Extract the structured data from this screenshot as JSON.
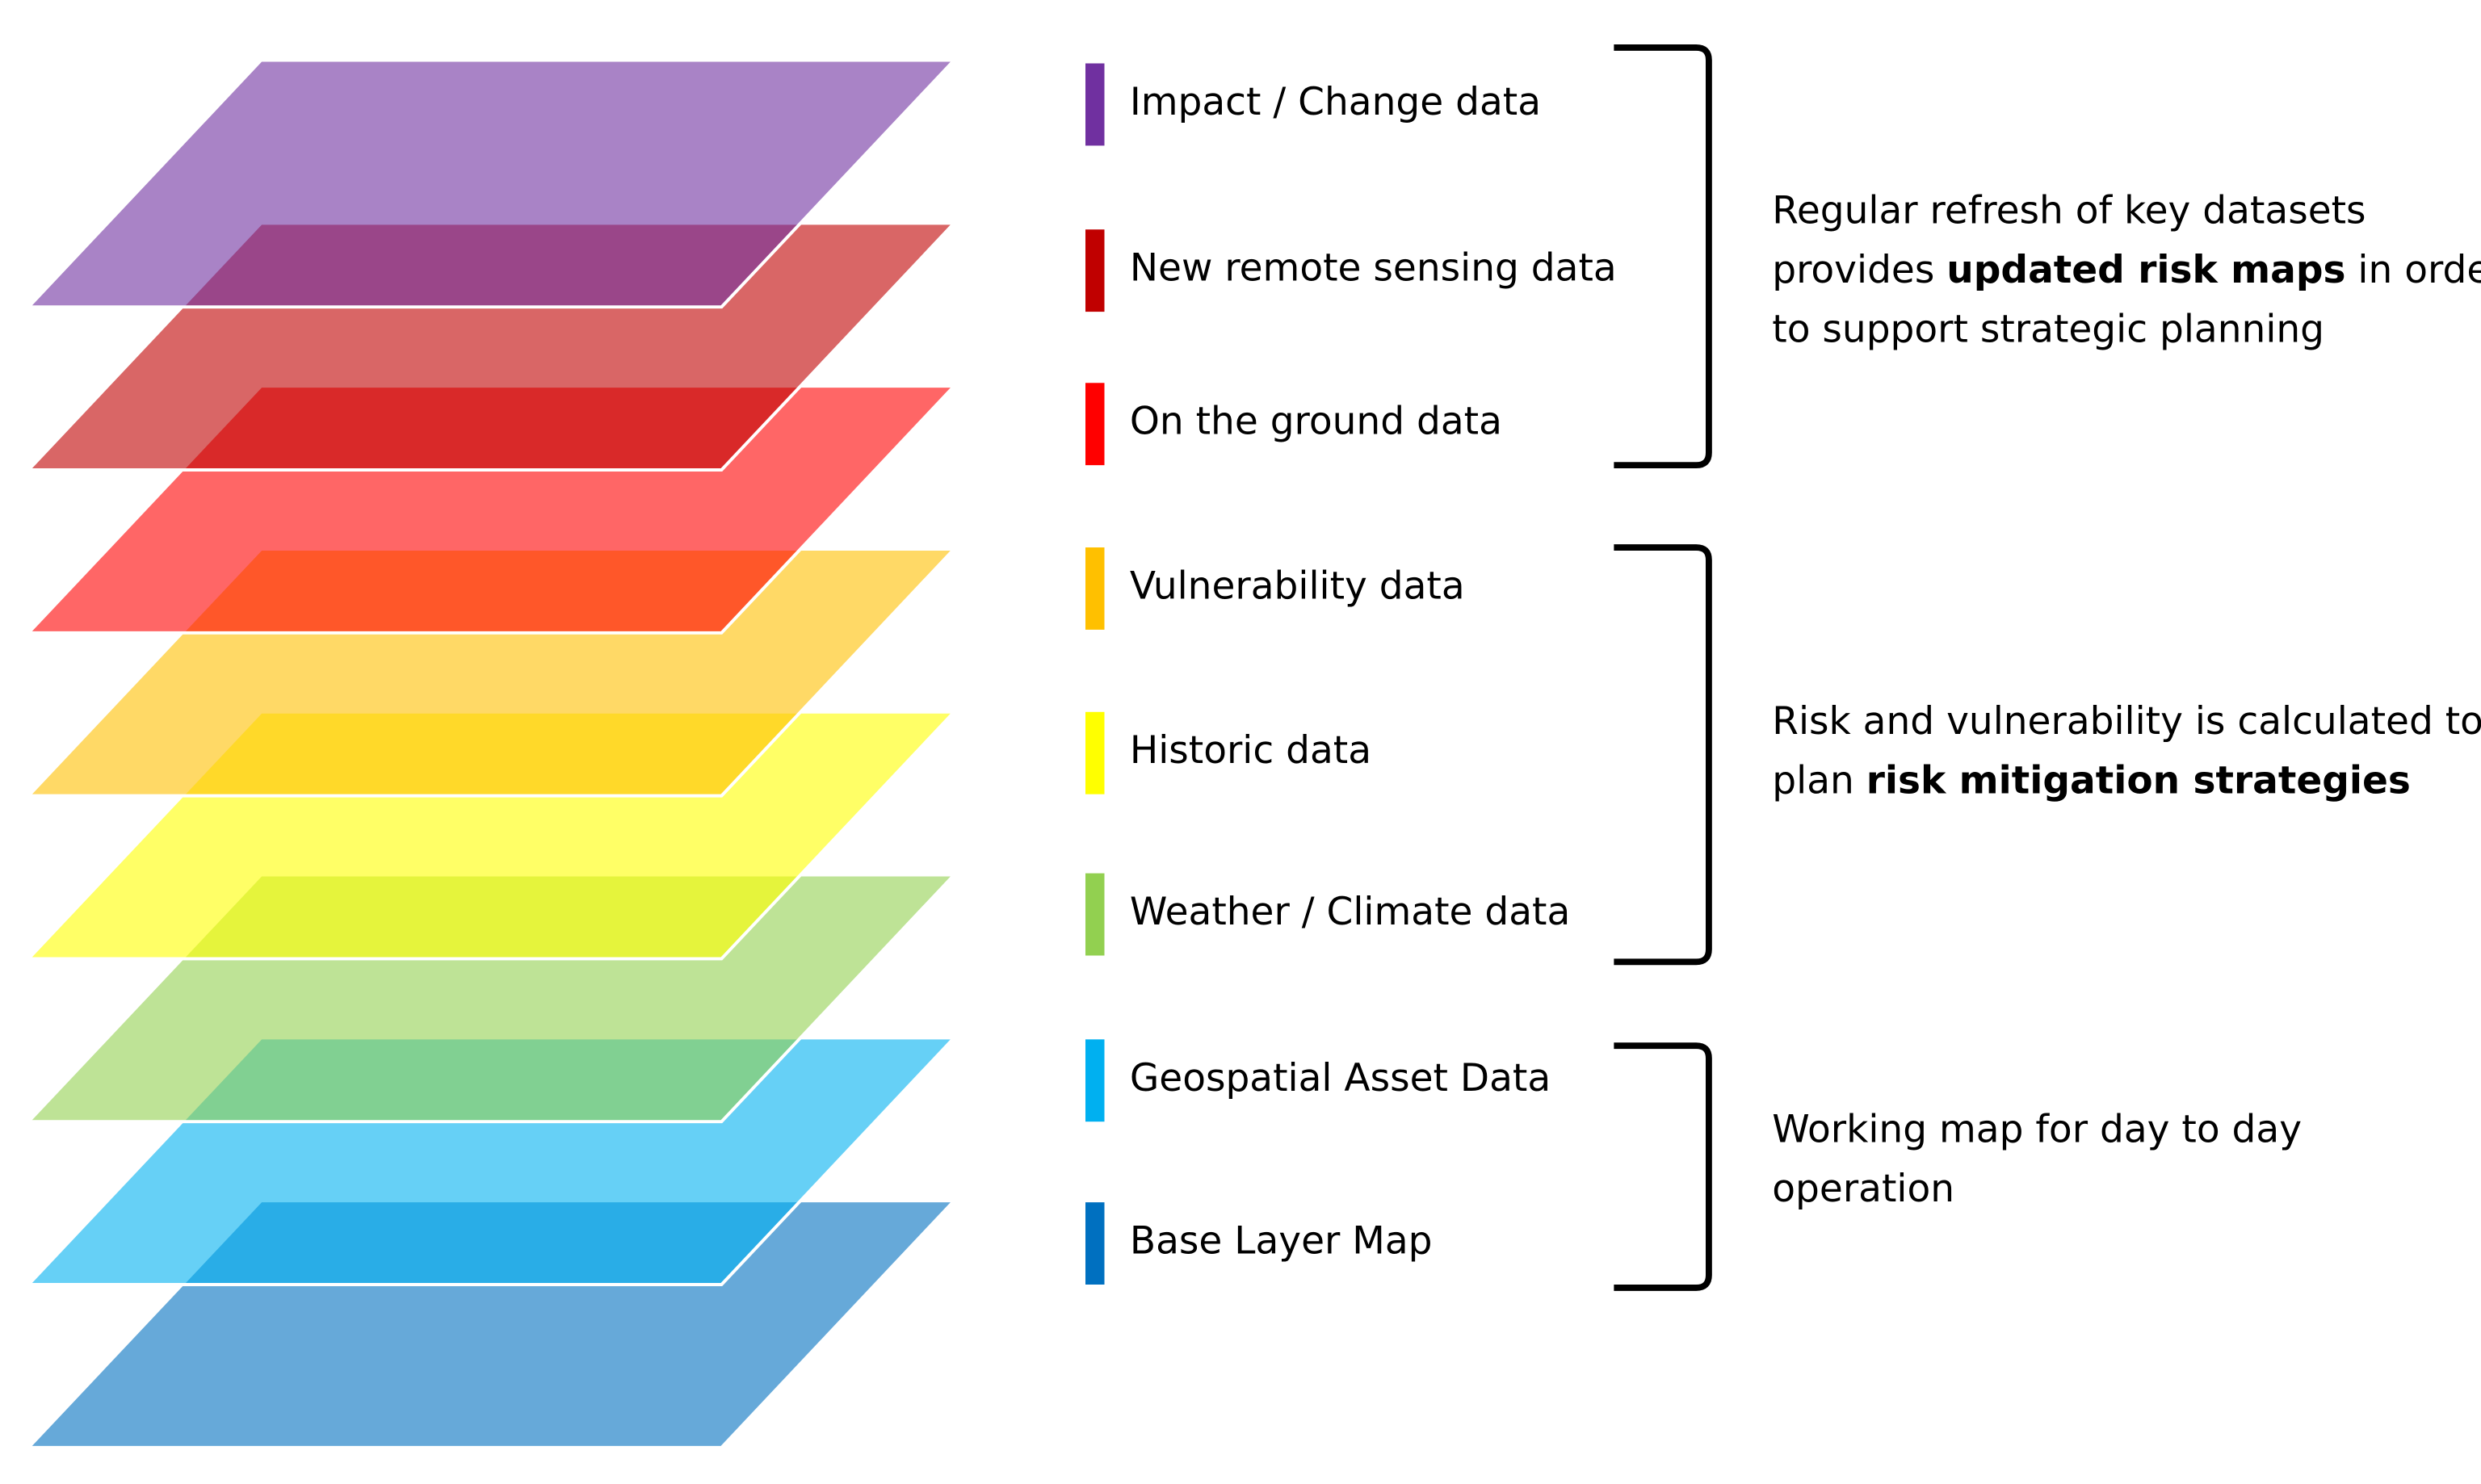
{
  "layers": [
    {
      "label": "Impact / Change data",
      "color": "#7030a0"
    },
    {
      "label": "New remote sensing data",
      "color": "#c00000"
    },
    {
      "label": "On the ground data",
      "color": "#ff0000"
    },
    {
      "label": "Vulnerability data",
      "color": "#ffc000"
    },
    {
      "label": "Historic data",
      "color": "#ffff00"
    },
    {
      "label": "Weather / Climate data",
      "color": "#92d050"
    },
    {
      "label": "Geospatial Asset Data",
      "color": "#00b0f0"
    },
    {
      "label": "Base Layer Map",
      "color": "#0070c0"
    }
  ],
  "groups": [
    {
      "lines": [
        [
          {
            "text": "Regular refresh of key datasets",
            "bold": false
          }
        ],
        [
          {
            "text": "provides ",
            "bold": false
          },
          {
            "text": "updated risk maps",
            "bold": true
          },
          {
            "text": " in order",
            "bold": false
          }
        ],
        [
          {
            "text": "to support strategic planning",
            "bold": false
          }
        ]
      ]
    },
    {
      "lines": [
        [
          {
            "text": "Risk and vulnerability is calculated to",
            "bold": false
          }
        ],
        [
          {
            "text": "plan ",
            "bold": false
          },
          {
            "text": "risk mitigation strategies",
            "bold": true
          }
        ]
      ]
    },
    {
      "lines": [
        [
          {
            "text": "Working map for day to day",
            "bold": false
          }
        ],
        [
          {
            "text": "operation",
            "bold": false
          }
        ]
      ]
    }
  ]
}
